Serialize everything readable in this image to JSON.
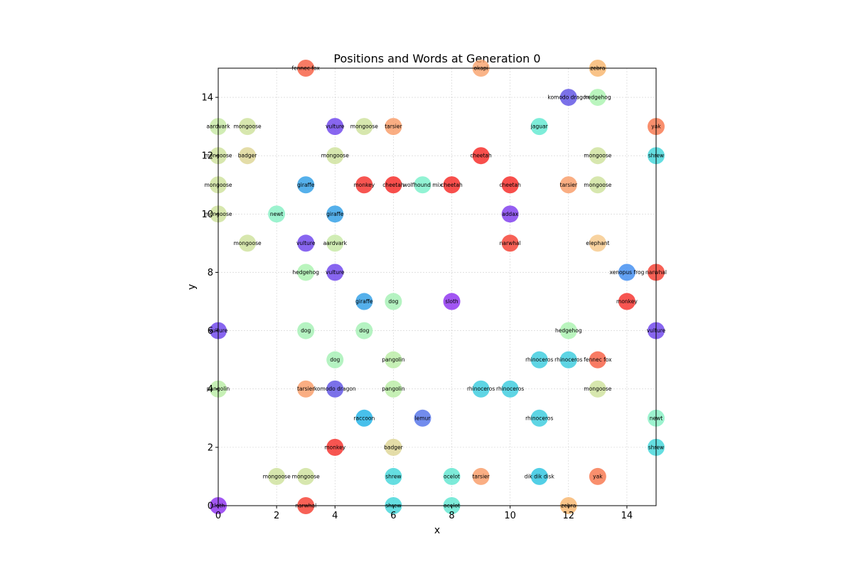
{
  "chart_data": {
    "type": "scatter",
    "title": "Positions and Words at Generation 0",
    "xlabel": "x",
    "ylabel": "y",
    "xlim": [
      0,
      15
    ],
    "ylim": [
      0,
      15
    ],
    "xticks": [
      "0",
      "2",
      "4",
      "6",
      "8",
      "10",
      "12",
      "14"
    ],
    "yticks": [
      "0",
      "2",
      "4",
      "6",
      "8",
      "10",
      "12",
      "14"
    ],
    "grid": true,
    "legend": "none",
    "points": [
      {
        "x": 0,
        "y": 0,
        "word": "sloth",
        "color": "#8b2cf0"
      },
      {
        "x": 3,
        "y": 0,
        "word": "narwhal",
        "color": "#f5392c"
      },
      {
        "x": 6,
        "y": 0,
        "word": "shrew",
        "color": "#3fd6da"
      },
      {
        "x": 8,
        "y": 0,
        "word": "ocelot",
        "color": "#5ce6cf"
      },
      {
        "x": 12,
        "y": 0,
        "word": "zebra",
        "color": "#f7b46a"
      },
      {
        "x": 2,
        "y": 1,
        "word": "mongoose",
        "color": "#cde19a"
      },
      {
        "x": 3,
        "y": 1,
        "word": "mongoose",
        "color": "#cde19a"
      },
      {
        "x": 6,
        "y": 1,
        "word": "shrew",
        "color": "#3fd6da"
      },
      {
        "x": 8,
        "y": 1,
        "word": "ocelot",
        "color": "#5ce6cf"
      },
      {
        "x": 9,
        "y": 1,
        "word": "tarsier",
        "color": "#f99a64"
      },
      {
        "x": 11,
        "y": 1,
        "word": "dik dik disk",
        "color": "#27c3e0"
      },
      {
        "x": 13,
        "y": 1,
        "word": "yak",
        "color": "#f77349"
      },
      {
        "x": 4,
        "y": 2,
        "word": "monkey",
        "color": "#f52a26"
      },
      {
        "x": 6,
        "y": 2,
        "word": "badger",
        "color": "#ddd592"
      },
      {
        "x": 15,
        "y": 2,
        "word": "shrew",
        "color": "#3fd6da"
      },
      {
        "x": 5,
        "y": 3,
        "word": "raccoon",
        "color": "#1ab0e6"
      },
      {
        "x": 7,
        "y": 3,
        "word": "lemur",
        "color": "#4f6fe8"
      },
      {
        "x": 11,
        "y": 3,
        "word": "rhinoceros",
        "color": "#36cadd"
      },
      {
        "x": 15,
        "y": 3,
        "word": "newt",
        "color": "#84f0c3"
      },
      {
        "x": 0,
        "y": 4,
        "word": "pangolin",
        "color": "#b8eca2"
      },
      {
        "x": 3,
        "y": 4,
        "word": "tarsier",
        "color": "#f99a64"
      },
      {
        "x": 4,
        "y": 4,
        "word": "komodo dragon",
        "color": "#5a4de4"
      },
      {
        "x": 6,
        "y": 4,
        "word": "pangolin",
        "color": "#b8eca2"
      },
      {
        "x": 9,
        "y": 4,
        "word": "rhinoceros",
        "color": "#36cadd"
      },
      {
        "x": 10,
        "y": 4,
        "word": "rhinoceros",
        "color": "#36cadd"
      },
      {
        "x": 13,
        "y": 4,
        "word": "mongoose",
        "color": "#cde19a"
      },
      {
        "x": 4,
        "y": 5,
        "word": "dog",
        "color": "#a3f0b3"
      },
      {
        "x": 6,
        "y": 5,
        "word": "pangolin",
        "color": "#b8eca2"
      },
      {
        "x": 11,
        "y": 5,
        "word": "rhinoceros",
        "color": "#36cadd"
      },
      {
        "x": 12,
        "y": 5,
        "word": "rhinoceros",
        "color": "#36cadd"
      },
      {
        "x": 13,
        "y": 5,
        "word": "fennec fox",
        "color": "#f65a3d"
      },
      {
        "x": 0,
        "y": 6,
        "word": "vulture",
        "color": "#6a40ec"
      },
      {
        "x": 3,
        "y": 6,
        "word": "dog",
        "color": "#a3f0b3"
      },
      {
        "x": 5,
        "y": 6,
        "word": "dog",
        "color": "#a3f0b3"
      },
      {
        "x": 12,
        "y": 6,
        "word": "hedgehog",
        "color": "#a9f3ae"
      },
      {
        "x": 15,
        "y": 6,
        "word": "vulture",
        "color": "#6a40ec"
      },
      {
        "x": 5,
        "y": 7,
        "word": "giraffe",
        "color": "#2a9ce6"
      },
      {
        "x": 6,
        "y": 7,
        "word": "dog",
        "color": "#a3f0b3"
      },
      {
        "x": 8,
        "y": 7,
        "word": "sloth",
        "color": "#8b2cf0"
      },
      {
        "x": 14,
        "y": 7,
        "word": "monkey",
        "color": "#f52a26"
      },
      {
        "x": 3,
        "y": 8,
        "word": "hedgehog",
        "color": "#a9f3ae"
      },
      {
        "x": 4,
        "y": 8,
        "word": "vulture",
        "color": "#6a40ec"
      },
      {
        "x": 14,
        "y": 8,
        "word": "xenopus frog",
        "color": "#3b8af0"
      },
      {
        "x": 15,
        "y": 8,
        "word": "narwhal",
        "color": "#f5392c"
      },
      {
        "x": 1,
        "y": 9,
        "word": "mongoose",
        "color": "#cde19a"
      },
      {
        "x": 3,
        "y": 9,
        "word": "vulture",
        "color": "#6a40ec"
      },
      {
        "x": 4,
        "y": 9,
        "word": "aardvark",
        "color": "#c6e8a2"
      },
      {
        "x": 10,
        "y": 9,
        "word": "narwhal",
        "color": "#f5392c"
      },
      {
        "x": 13,
        "y": 9,
        "word": "elephant",
        "color": "#f6c888"
      },
      {
        "x": 0,
        "y": 10,
        "word": "mongoose",
        "color": "#cde19a"
      },
      {
        "x": 2,
        "y": 10,
        "word": "newt",
        "color": "#84f0c3"
      },
      {
        "x": 4,
        "y": 10,
        "word": "giraffe",
        "color": "#2a9ce6"
      },
      {
        "x": 10,
        "y": 10,
        "word": "addax",
        "color": "#7a36ee"
      },
      {
        "x": 0,
        "y": 11,
        "word": "mongoose",
        "color": "#cde19a"
      },
      {
        "x": 3,
        "y": 11,
        "word": "giraffe",
        "color": "#2a9ce6"
      },
      {
        "x": 5,
        "y": 11,
        "word": "monkey",
        "color": "#f52a26"
      },
      {
        "x": 6,
        "y": 11,
        "word": "cheetah",
        "color": "#f6231f"
      },
      {
        "x": 7,
        "y": 11,
        "word": "wolfhound mix",
        "color": "#77f0c9"
      },
      {
        "x": 8,
        "y": 11,
        "word": "cheetah",
        "color": "#f6231f"
      },
      {
        "x": 10,
        "y": 11,
        "word": "cheetah",
        "color": "#f6231f"
      },
      {
        "x": 12,
        "y": 11,
        "word": "tarsier",
        "color": "#f99a64"
      },
      {
        "x": 13,
        "y": 11,
        "word": "mongoose",
        "color": "#cde19a"
      },
      {
        "x": 0,
        "y": 12,
        "word": "mongoose",
        "color": "#cde19a"
      },
      {
        "x": 1,
        "y": 12,
        "word": "badger",
        "color": "#ddd592"
      },
      {
        "x": 4,
        "y": 12,
        "word": "mongoose",
        "color": "#cde19a"
      },
      {
        "x": 9,
        "y": 12,
        "word": "cheetah",
        "color": "#f6231f"
      },
      {
        "x": 13,
        "y": 12,
        "word": "mongoose",
        "color": "#cde19a"
      },
      {
        "x": 15,
        "y": 12,
        "word": "shrew",
        "color": "#3fd6da"
      },
      {
        "x": 0,
        "y": 13,
        "word": "aardvark",
        "color": "#c6e8a2"
      },
      {
        "x": 1,
        "y": 13,
        "word": "mongoose",
        "color": "#cde19a"
      },
      {
        "x": 4,
        "y": 13,
        "word": "vulture",
        "color": "#6a40ec"
      },
      {
        "x": 5,
        "y": 13,
        "word": "mongoose",
        "color": "#cde19a"
      },
      {
        "x": 6,
        "y": 13,
        "word": "tarsier",
        "color": "#f99a64"
      },
      {
        "x": 11,
        "y": 13,
        "word": "jaguar",
        "color": "#5ee8cf"
      },
      {
        "x": 15,
        "y": 13,
        "word": "yak",
        "color": "#f77349"
      },
      {
        "x": 12,
        "y": 14,
        "word": "komodo dragon",
        "color": "#5a4de4"
      },
      {
        "x": 13,
        "y": 14,
        "word": "hedgehog",
        "color": "#a9f3ae"
      },
      {
        "x": 3,
        "y": 15,
        "word": "fennec fox",
        "color": "#f65a3d"
      },
      {
        "x": 9,
        "y": 15,
        "word": "okapi",
        "color": "#f9a16a"
      },
      {
        "x": 13,
        "y": 15,
        "word": "zebra",
        "color": "#f7b46a"
      }
    ]
  }
}
